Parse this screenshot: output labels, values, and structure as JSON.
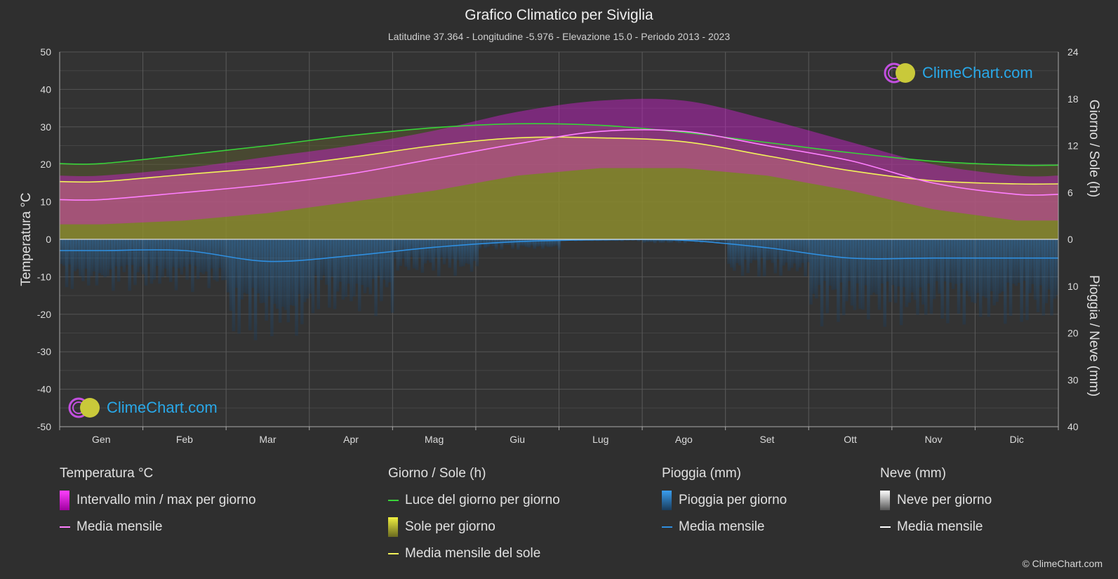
{
  "title": "Grafico Climatico per Siviglia",
  "subtitle": "Latitudine 37.364 - Longitudine -5.976 - Elevazione 15.0 - Periodo 2013 - 2023",
  "logo_text": "ClimeChart.com",
  "copyright": "© ClimeChart.com",
  "colors": {
    "background": "#2f2f2f",
    "temp_range": "#e000e0",
    "temp_mean": "#ff7fff",
    "daylight": "#39d339",
    "sunshine": "#c8c83a",
    "sunshine_mean": "#f2f25a",
    "rain": "#1e6fb8",
    "rain_mean": "#2f8fe0",
    "snow_mean": "#ffffff"
  },
  "chart_data": {
    "type": "area",
    "categories": [
      "Gen",
      "Feb",
      "Mar",
      "Apr",
      "Mag",
      "Giu",
      "Lug",
      "Ago",
      "Set",
      "Ott",
      "Nov",
      "Dic"
    ],
    "left_axis": {
      "label": "Temperatura °C",
      "ticks": [
        50,
        40,
        30,
        20,
        10,
        0,
        -10,
        -20,
        -30,
        -40,
        -50
      ],
      "range": [
        -50,
        50
      ]
    },
    "right_axis_top": {
      "label": "Giorno / Sole (h)",
      "ticks": [
        24,
        18,
        12,
        6,
        0
      ],
      "range": [
        0,
        24
      ]
    },
    "right_axis_bottom": {
      "label": "Pioggia / Neve (mm)",
      "ticks": [
        0,
        10,
        20,
        30,
        40
      ],
      "range": [
        0,
        40
      ]
    },
    "grid": true,
    "series": [
      {
        "name": "Media mensile",
        "group": "Temperatura °C",
        "unit": "°C",
        "values": [
          10.6,
          12.5,
          14.6,
          17.5,
          21.5,
          25.5,
          28.8,
          28.8,
          25.0,
          21.0,
          15.0,
          12.0
        ]
      },
      {
        "name": "Luce del giorno per giorno",
        "group": "Giorno / Sole (h)",
        "unit": "h",
        "values": [
          9.7,
          10.8,
          12.0,
          13.3,
          14.3,
          14.8,
          14.6,
          13.7,
          12.4,
          11.1,
          10.0,
          9.5
        ]
      },
      {
        "name": "Media mensile del sole",
        "group": "Giorno / Sole (h)",
        "unit": "h",
        "values": [
          7.4,
          8.3,
          9.2,
          10.5,
          12.0,
          13.0,
          13.0,
          12.5,
          10.7,
          8.8,
          7.5,
          7.1
        ]
      },
      {
        "name": "Media mensile",
        "group": "Pioggia (mm)",
        "unit": "mm",
        "values": [
          2.4,
          2.4,
          4.7,
          3.5,
          1.7,
          0.5,
          0.1,
          0.2,
          1.8,
          4.0,
          4.0,
          4.0
        ]
      },
      {
        "name": "Media mensile",
        "group": "Neve (mm)",
        "unit": "mm",
        "values": [
          0,
          0,
          0,
          0,
          0,
          0,
          0,
          0,
          0,
          0,
          0,
          0
        ]
      }
    ],
    "temp_range": {
      "name": "Intervallo min / max per giorno",
      "min": [
        4,
        5,
        7,
        10,
        13,
        17,
        19,
        19,
        17,
        13,
        8,
        5
      ],
      "max": [
        17,
        19,
        22,
        25,
        29,
        34,
        37,
        37,
        32,
        26,
        20,
        17
      ]
    }
  },
  "legend": [
    {
      "heading": "Temperatura °C",
      "items": [
        {
          "label": "Intervallo min / max per giorno",
          "swatch": "box",
          "color": "#e000e0"
        },
        {
          "label": "Media mensile",
          "swatch": "line",
          "color": "#ff7fff"
        }
      ]
    },
    {
      "heading": "Giorno / Sole (h)",
      "items": [
        {
          "label": "Luce del giorno per giorno",
          "swatch": "line",
          "color": "#39d339"
        },
        {
          "label": "Sole per giorno",
          "swatch": "box",
          "color": "#d4d43c"
        },
        {
          "label": "Media mensile del sole",
          "swatch": "line",
          "color": "#f2f25a"
        }
      ]
    },
    {
      "heading": "Pioggia (mm)",
      "items": [
        {
          "label": "Pioggia per giorno",
          "swatch": "box",
          "color": "#2f8fe0"
        },
        {
          "label": "Media mensile",
          "swatch": "line",
          "color": "#2f8fe0"
        }
      ]
    },
    {
      "heading": "Neve (mm)",
      "items": [
        {
          "label": "Neve per giorno",
          "swatch": "box",
          "color": "#e8e8e8"
        },
        {
          "label": "Media mensile",
          "swatch": "line",
          "color": "#ffffff"
        }
      ]
    }
  ]
}
